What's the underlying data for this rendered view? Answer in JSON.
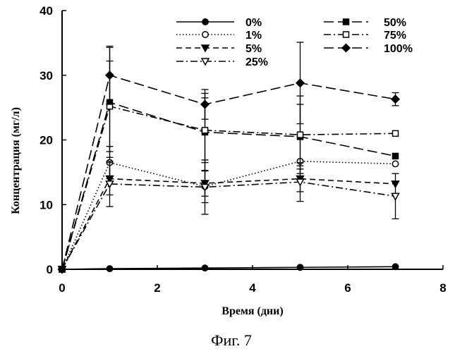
{
  "figure": {
    "caption": "Фиг. 7"
  },
  "chart_data": {
    "type": "line",
    "xlabel": "Время (дни)",
    "ylabel": "Концентрация (мг/л)",
    "xlim": [
      0,
      8
    ],
    "ylim": [
      0,
      40
    ],
    "xticks": [
      "0",
      "2",
      "4",
      "6",
      "8"
    ],
    "yticks": [
      "0",
      "10",
      "20",
      "30",
      "40"
    ],
    "grid": false,
    "legend_position": "top-right",
    "x": [
      0,
      1,
      3,
      5,
      7
    ],
    "series": [
      {
        "name": "0%",
        "marker": "filled-circle",
        "dash": "solid",
        "values": [
          0,
          0.1,
          0.2,
          0.3,
          0.4
        ],
        "err": [
          0,
          0,
          0,
          0,
          0
        ]
      },
      {
        "name": "1%",
        "marker": "open-circle",
        "dash": "dotted",
        "values": [
          0,
          16.5,
          12.8,
          16.7,
          16.3
        ],
        "err": [
          0,
          2.5,
          2.5,
          0,
          0
        ]
      },
      {
        "name": "5%",
        "marker": "filled-triangle-down",
        "dash": "dashed",
        "values": [
          0,
          14,
          13.3,
          14,
          13.2
        ],
        "err": [
          0,
          2.5,
          2,
          2,
          0
        ]
      },
      {
        "name": "25%",
        "marker": "open-triangle-down",
        "dash": "dash-dot",
        "values": [
          0,
          13.2,
          12.7,
          13.5,
          11.3
        ],
        "err": [
          0,
          3.5,
          4.2,
          3,
          3.5
        ]
      },
      {
        "name": "50%",
        "marker": "filled-square",
        "dash": "long-dash",
        "values": [
          0,
          25.8,
          21.2,
          20.5,
          17.5
        ],
        "err": [
          0,
          8.5,
          6,
          5,
          0
        ]
      },
      {
        "name": "75%",
        "marker": "open-square",
        "dash": "dash-dot",
        "values": [
          0,
          25.2,
          21.5,
          20.8,
          21
        ],
        "err": [
          0,
          7,
          5,
          6,
          0
        ]
      },
      {
        "name": "100%",
        "marker": "filled-diamond",
        "dash": "long-dash",
        "values": [
          0,
          30,
          25.5,
          28.8,
          26.3
        ],
        "err": [
          0,
          4.5,
          2.3,
          6.3,
          1
        ]
      }
    ]
  }
}
